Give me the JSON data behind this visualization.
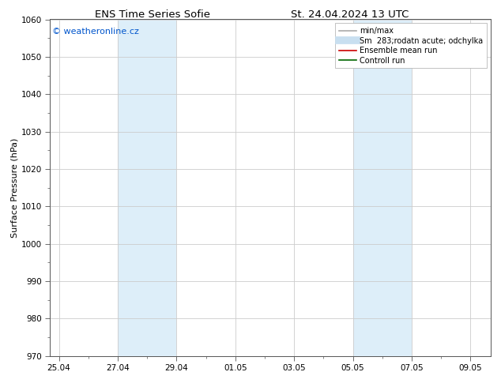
{
  "title_left": "ENS Time Series Sofie",
  "title_right": "St. 24.04.2024 13 UTC",
  "ylabel": "Surface Pressure (hPa)",
  "ylim": [
    970,
    1060
  ],
  "yticks": [
    970,
    980,
    990,
    1000,
    1010,
    1020,
    1030,
    1040,
    1050,
    1060
  ],
  "xtick_labels": [
    "25.04",
    "27.04",
    "29.04",
    "01.05",
    "03.05",
    "05.05",
    "07.05",
    "09.05"
  ],
  "xtick_positions": [
    0,
    2,
    4,
    6,
    8,
    10,
    12,
    14
  ],
  "xlim": [
    -0.3,
    14.7
  ],
  "shaded_regions": [
    {
      "start": 2,
      "end": 4,
      "color": "#ddeef9"
    },
    {
      "start": 10,
      "end": 12,
      "color": "#ddeef9"
    }
  ],
  "watermark_text": "© weatheronline.cz",
  "watermark_color": "#0055cc",
  "legend_entries": [
    {
      "label": "min/max",
      "color": "#aaaaaa",
      "lw": 1.2
    },
    {
      "label": "Sm  283;rodatn acute; odchylka",
      "color": "#c8dff0",
      "lw": 7
    },
    {
      "label": "Ensemble mean run",
      "color": "#cc0000",
      "lw": 1.2
    },
    {
      "label": "Controll run",
      "color": "#006600",
      "lw": 1.2
    }
  ],
  "bg_color": "#ffffff",
  "grid_color": "#cccccc",
  "title_fontsize": 9.5,
  "ylabel_fontsize": 8,
  "tick_fontsize": 7.5,
  "legend_fontsize": 7,
  "watermark_fontsize": 8
}
